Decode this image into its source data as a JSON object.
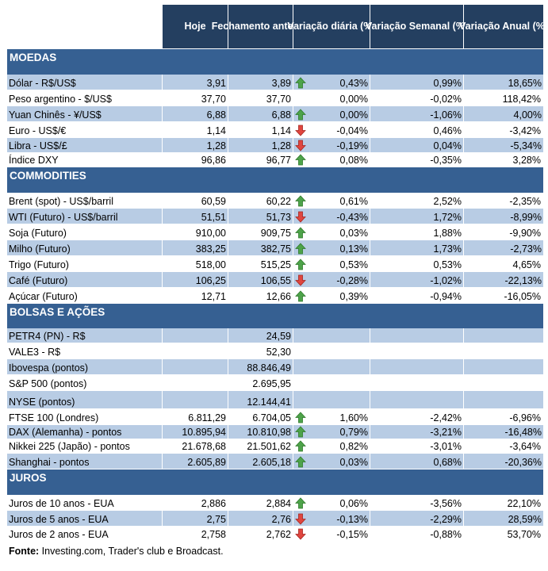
{
  "headers": [
    "",
    "Hoje",
    "Fechamento anterior",
    "Variação diária (%)",
    "Variação Semanal (%)",
    "Variação Anual (%)"
  ],
  "colors": {
    "header": "#243F60",
    "section": "#366092",
    "band": "#B8CCE4",
    "up": "#4EA34A",
    "down": "#E0463F"
  },
  "rows": [
    {
      "type": "section",
      "label": "MOEDAS"
    },
    {
      "label": "Dólar - R$/US$",
      "hoje": "3,91",
      "fech": "3,89",
      "arrow": "up",
      "dia": "0,43%",
      "sem": "0,99%",
      "ano": "18,65%"
    },
    {
      "label": "Peso argentino - $/US$",
      "hoje": "37,70",
      "fech": "37,70",
      "arrow": "",
      "dia": "0,00%",
      "sem": "-0,02%",
      "ano": "118,42%"
    },
    {
      "label": "Yuan Chinês - ¥/US$",
      "hoje": "6,88",
      "fech": "6,88",
      "arrow": "up",
      "dia": "0,00%",
      "sem": "-1,06%",
      "ano": "4,00%"
    },
    {
      "label": "Euro - US$/€",
      "hoje": "1,14",
      "fech": "1,14",
      "arrow": "down",
      "dia": "-0,04%",
      "sem": "0,46%",
      "ano": "-3,42%"
    },
    {
      "label": "Libra - US$/£",
      "hoje": "1,28",
      "fech": "1,28",
      "arrow": "down",
      "dia": "-0,19%",
      "sem": "0,04%",
      "ano": "-5,34%"
    },
    {
      "label": "Índice DXY",
      "hoje": "96,86",
      "fech": "96,77",
      "arrow": "up",
      "dia": "0,08%",
      "sem": "-0,35%",
      "ano": "3,28%"
    },
    {
      "type": "section",
      "label": "COMMODITIES"
    },
    {
      "label": "Brent (spot) - US$/barril",
      "hoje": "60,59",
      "fech": "60,22",
      "arrow": "up",
      "dia": "0,61%",
      "sem": "2,52%",
      "ano": "-2,35%"
    },
    {
      "label": "WTI (Futuro) - US$/barril",
      "hoje": "51,51",
      "fech": "51,73",
      "arrow": "down",
      "dia": "-0,43%",
      "sem": "1,72%",
      "ano": "-8,99%"
    },
    {
      "label": "Soja (Futuro)",
      "hoje": "910,00",
      "fech": "909,75",
      "arrow": "up",
      "dia": "0,03%",
      "sem": "1,88%",
      "ano": "-9,90%"
    },
    {
      "label": "Milho (Futuro)",
      "hoje": "383,25",
      "fech": "382,75",
      "arrow": "up",
      "dia": "0,13%",
      "sem": "1,73%",
      "ano": "-2,73%"
    },
    {
      "label": "Trigo (Futuro)",
      "hoje": "518,00",
      "fech": "515,25",
      "arrow": "up",
      "dia": "0,53%",
      "sem": "0,53%",
      "ano": "4,65%"
    },
    {
      "label": "Café (Futuro)",
      "hoje": "106,25",
      "fech": "106,55",
      "arrow": "down",
      "dia": "-0,28%",
      "sem": "-1,02%",
      "ano": "-22,13%"
    },
    {
      "label": "Açúcar (Futuro)",
      "hoje": "12,71",
      "fech": "12,66",
      "arrow": "up",
      "dia": "0,39%",
      "sem": "-0,94%",
      "ano": "-16,05%"
    },
    {
      "type": "section",
      "label": "BOLSAS E AÇÕES"
    },
    {
      "label": "PETR4 (PN) - R$",
      "hoje": "",
      "fech": "24,59",
      "arrow": "",
      "dia": "",
      "sem": "",
      "ano": ""
    },
    {
      "label": "VALE3 - R$",
      "hoje": "",
      "fech": "52,30",
      "arrow": "",
      "dia": "",
      "sem": "",
      "ano": ""
    },
    {
      "label": "Ibovespa (pontos)",
      "hoje": "",
      "fech": "88.846,49",
      "arrow": "",
      "dia": "",
      "sem": "",
      "ano": ""
    },
    {
      "label": "S&P 500 (pontos)",
      "hoje": "",
      "fech": "2.695,95",
      "arrow": "",
      "dia": "",
      "sem": "",
      "ano": ""
    },
    {
      "label": "NYSE (pontos)",
      "hoje": "",
      "fech": "12.144,41",
      "arrow": "",
      "dia": "",
      "sem": "",
      "ano": ""
    },
    {
      "label": "FTSE 100 (Londres)",
      "hoje": "6.811,29",
      "fech": "6.704,05",
      "arrow": "up",
      "dia": "1,60%",
      "sem": "-2,42%",
      "ano": "-6,96%"
    },
    {
      "label": "DAX (Alemanha) - pontos",
      "hoje": "10.895,94",
      "fech": "10.810,98",
      "arrow": "up",
      "dia": "0,79%",
      "sem": "-3,21%",
      "ano": "-16,48%"
    },
    {
      "label": "Nikkei 225 (Japão) - pontos",
      "hoje": "21.678,68",
      "fech": "21.501,62",
      "arrow": "up",
      "dia": "0,82%",
      "sem": "-3,01%",
      "ano": "-3,64%"
    },
    {
      "label": "Shanghai - pontos",
      "hoje": "2.605,89",
      "fech": "2.605,18",
      "arrow": "up",
      "dia": "0,03%",
      "sem": "0,68%",
      "ano": "-20,36%"
    },
    {
      "type": "section",
      "label": "JUROS"
    },
    {
      "label": "Juros de 10 anos - EUA",
      "hoje": "2,886",
      "fech": "2,884",
      "arrow": "up",
      "dia": "0,06%",
      "sem": "-3,56%",
      "ano": "22,10%"
    },
    {
      "label": "Juros de 5 anos - EUA",
      "hoje": "2,75",
      "fech": "2,76",
      "arrow": "down",
      "dia": "-0,13%",
      "sem": "-2,29%",
      "ano": "28,59%"
    },
    {
      "label": "Juros de 2 anos - EUA",
      "hoje": "2,758",
      "fech": "2,762",
      "arrow": "down",
      "dia": "-0,15%",
      "sem": "-0,88%",
      "ano": "53,70%"
    }
  ],
  "footer": {
    "bold": "Fonte:",
    "text": " Investing.com, Trader's club e Broadcast."
  }
}
